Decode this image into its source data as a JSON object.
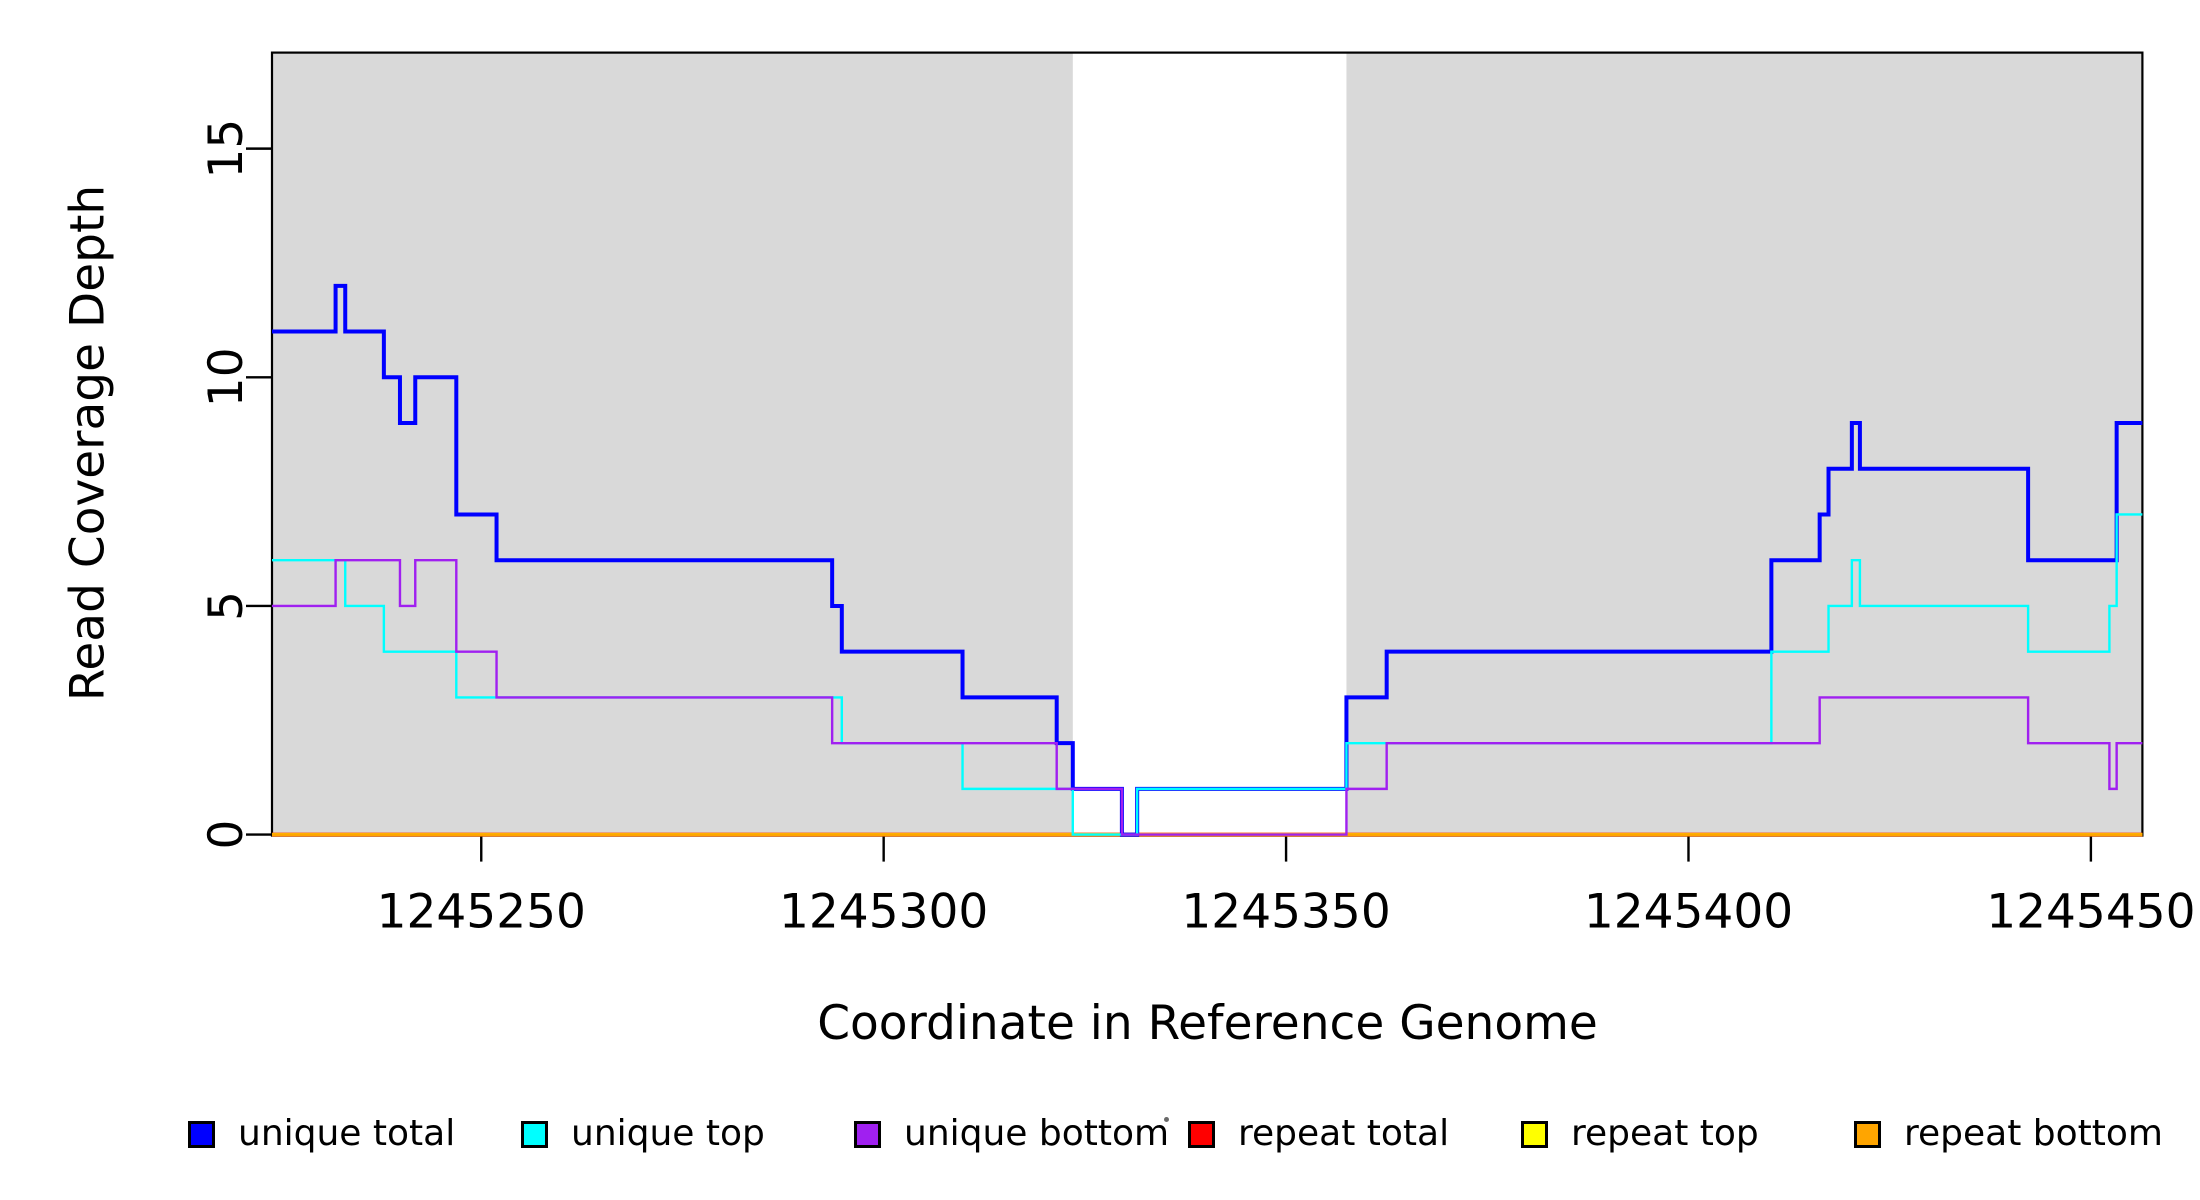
{
  "chart_data": {
    "type": "line",
    "subtype": "step",
    "title": "",
    "xlabel": "Coordinate in Reference Genome",
    "ylabel": "Read Coverage Depth",
    "x_ticks": [
      1245250,
      1245300,
      1245350,
      1245400,
      1245450
    ],
    "y_ticks": [
      0,
      5,
      10,
      15
    ],
    "xlim": [
      1245224,
      1245456.4
    ],
    "ylim": [
      0,
      17.1
    ],
    "grid": "off",
    "legend_position": "bottom",
    "band_color": "#d9d9d9",
    "shaded_regions": [
      [
        1245224,
        1245323.5
      ],
      [
        1245357.5,
        1245456.4
      ]
    ],
    "draw_order": [
      3,
      4,
      5,
      0,
      1,
      2
    ],
    "series": [
      {
        "name": "unique total",
        "color": "#0000ff",
        "width": 4,
        "steps": [
          [
            1245224,
            11
          ],
          [
            1245231.9,
            12
          ],
          [
            1245233.1,
            11
          ],
          [
            1245237.9,
            10
          ],
          [
            1245239.9,
            9
          ],
          [
            1245241.8,
            10
          ],
          [
            1245246.9,
            7
          ],
          [
            1245251.9,
            6
          ],
          [
            1245293.6,
            5
          ],
          [
            1245294.8,
            4
          ],
          [
            1245309.8,
            3
          ],
          [
            1245321.5,
            2
          ],
          [
            1245323.5,
            1
          ],
          [
            1245329.6,
            0
          ],
          [
            1245331.5,
            1
          ],
          [
            1245357.5,
            3
          ],
          [
            1245362.5,
            4
          ],
          [
            1245410.3,
            6
          ],
          [
            1245416.3,
            7
          ],
          [
            1245417.4,
            8
          ],
          [
            1245420.3,
            9
          ],
          [
            1245421.3,
            8
          ],
          [
            1245442.2,
            6
          ],
          [
            1245453.2,
            9
          ]
        ]
      },
      {
        "name": "unique top",
        "color": "#00ffff",
        "width": 2.4,
        "steps": [
          [
            1245224,
            6
          ],
          [
            1245233.1,
            5
          ],
          [
            1245237.9,
            4
          ],
          [
            1245246.9,
            3
          ],
          [
            1245294.8,
            2
          ],
          [
            1245309.8,
            1
          ],
          [
            1245323.5,
            0
          ],
          [
            1245331.5,
            1
          ],
          [
            1245357.5,
            2
          ],
          [
            1245410.3,
            4
          ],
          [
            1245417.4,
            5
          ],
          [
            1245420.3,
            6
          ],
          [
            1245421.3,
            5
          ],
          [
            1245442.2,
            4
          ],
          [
            1245452.3,
            5
          ],
          [
            1245453.2,
            7
          ]
        ]
      },
      {
        "name": "unique bottom",
        "color": "#a020f0",
        "width": 2.4,
        "steps": [
          [
            1245224,
            5
          ],
          [
            1245231.9,
            6
          ],
          [
            1245239.9,
            5
          ],
          [
            1245241.8,
            6
          ],
          [
            1245246.9,
            4
          ],
          [
            1245251.9,
            3
          ],
          [
            1245293.6,
            2
          ],
          [
            1245321.5,
            1
          ],
          [
            1245329.6,
            0
          ],
          [
            1245357.5,
            1
          ],
          [
            1245362.5,
            2
          ],
          [
            1245416.3,
            3
          ],
          [
            1245442.2,
            2
          ],
          [
            1245452.3,
            1
          ],
          [
            1245453.2,
            2
          ]
        ]
      },
      {
        "name": "repeat total",
        "color": "#ff0000",
        "width": 4,
        "steps": [
          [
            1245224,
            0
          ]
        ]
      },
      {
        "name": "repeat top",
        "color": "#ffff00",
        "width": 3.4,
        "steps": [
          [
            1245224,
            0
          ]
        ]
      },
      {
        "name": "repeat bottom",
        "color": "#ffa500",
        "width": 3,
        "steps": [
          [
            1245224,
            0
          ]
        ]
      }
    ]
  },
  "legend": {
    "items": [
      {
        "label": "unique total",
        "color": "#0000ff"
      },
      {
        "label": "unique top",
        "color": "#00ffff"
      },
      {
        "label": "unique bottom",
        "color": "#a020f0"
      },
      {
        "label": "repeat total",
        "color": "#ff0000"
      },
      {
        "label": "repeat top",
        "color": "#ffff00"
      },
      {
        "label": "repeat bottom",
        "color": "#ffa500"
      }
    ]
  }
}
